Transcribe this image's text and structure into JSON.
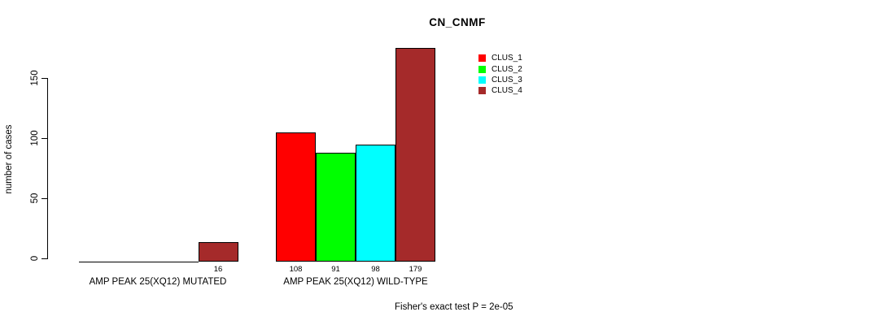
{
  "title": "CN_CNMF",
  "y_axis": {
    "label": "number of cases",
    "ticks": [
      0,
      50,
      100,
      150
    ]
  },
  "legend": {
    "position": "top-right",
    "items": [
      {
        "label": "CLUS_1",
        "color": "#ff0000"
      },
      {
        "label": "CLUS_2",
        "color": "#00ff00"
      },
      {
        "label": "CLUS_3",
        "color": "#00ffff"
      },
      {
        "label": "CLUS_4",
        "color": "#a52a2a"
      }
    ]
  },
  "annotation": "Fisher's exact test P = 2e-05",
  "chart_data": {
    "type": "bar",
    "title": "CN_CNMF",
    "xlabel": "",
    "ylabel": "number of cases",
    "categories": [
      "AMP PEAK 25(XQ12) MUTATED",
      "AMP PEAK 25(XQ12) WILD-TYPE"
    ],
    "series": [
      {
        "name": "CLUS_1",
        "color": "#ff0000",
        "values": [
          0,
          108
        ]
      },
      {
        "name": "CLUS_2",
        "color": "#00ff00",
        "values": [
          0,
          91
        ]
      },
      {
        "name": "CLUS_3",
        "color": "#00ffff",
        "values": [
          0,
          98
        ]
      },
      {
        "name": "CLUS_4",
        "color": "#a52a2a",
        "values": [
          16,
          179
        ]
      }
    ],
    "bar_value_labels": [
      [
        null,
        null,
        null,
        "16"
      ],
      [
        "108",
        "91",
        "98",
        "179"
      ]
    ],
    "ylim": [
      0,
      180
    ],
    "grid": false,
    "legend_position": "top-right",
    "annotation": "Fisher's exact test P = 2e-05"
  }
}
